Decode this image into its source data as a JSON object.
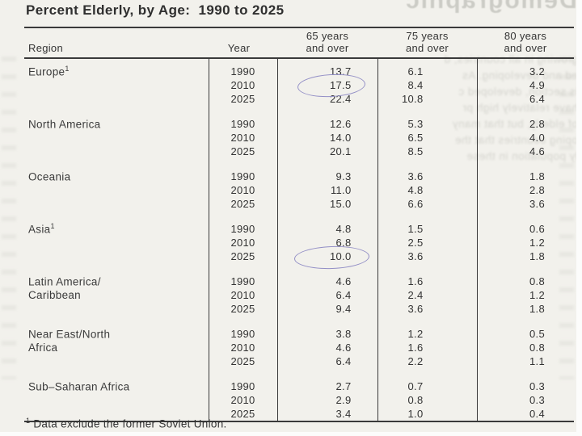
{
  "title": "Percent Elderly, by Age:  1990 to 2025",
  "columns": {
    "region": "Region",
    "year": "Year",
    "c65_line1": "65 years",
    "c65_line2": "and over",
    "c75_line1": "75 years",
    "c75_line2": "and over",
    "c80_line1": "80 years",
    "c80_line2": "and over"
  },
  "table": {
    "groups": [
      {
        "region_line1": "Europe",
        "region_sup": "1",
        "region_line2": "",
        "rows": [
          {
            "year": "1990",
            "v65": "13.7",
            "v75": "6.1",
            "v80": "3.2"
          },
          {
            "year": "2010",
            "v65": "17.5",
            "v75": "8.4",
            "v80": "4.9"
          },
          {
            "year": "2025",
            "v65": "22.4",
            "v75": "10.8",
            "v80": "6.4"
          }
        ]
      },
      {
        "region_line1": "North America",
        "region_sup": "",
        "region_line2": "",
        "rows": [
          {
            "year": "1990",
            "v65": "12.6",
            "v75": "5.3",
            "v80": "2.8"
          },
          {
            "year": "2010",
            "v65": "14.0",
            "v75": "6.5",
            "v80": "4.0"
          },
          {
            "year": "2025",
            "v65": "20.1",
            "v75": "8.5",
            "v80": "4.6"
          }
        ]
      },
      {
        "region_line1": "Oceania",
        "region_sup": "",
        "region_line2": "",
        "rows": [
          {
            "year": "1990",
            "v65": "9.3",
            "v75": "3.6",
            "v80": "1.8"
          },
          {
            "year": "2010",
            "v65": "11.0",
            "v75": "4.8",
            "v80": "2.8"
          },
          {
            "year": "2025",
            "v65": "15.0",
            "v75": "6.6",
            "v80": "3.6"
          }
        ]
      },
      {
        "region_line1": "Asia",
        "region_sup": "1",
        "region_line2": "",
        "rows": [
          {
            "year": "1990",
            "v65": "4.8",
            "v75": "1.5",
            "v80": "0.6"
          },
          {
            "year": "2010",
            "v65": "6.8",
            "v75": "2.5",
            "v80": "1.2"
          },
          {
            "year": "2025",
            "v65": "10.0",
            "v75": "3.6",
            "v80": "1.8"
          }
        ]
      },
      {
        "region_line1": "Latin America/",
        "region_sup": "",
        "region_line2": "Caribbean",
        "rows": [
          {
            "year": "1990",
            "v65": "4.6",
            "v75": "1.6",
            "v80": "0.8"
          },
          {
            "year": "2010",
            "v65": "6.4",
            "v75": "2.4",
            "v80": "1.2"
          },
          {
            "year": "2025",
            "v65": "9.4",
            "v75": "3.6",
            "v80": "1.8"
          }
        ]
      },
      {
        "region_line1": "Near East/North",
        "region_sup": "",
        "region_line2": "Africa",
        "rows": [
          {
            "year": "1990",
            "v65": "3.8",
            "v75": "1.2",
            "v80": "0.5"
          },
          {
            "year": "2010",
            "v65": "4.6",
            "v75": "1.6",
            "v80": "0.8"
          },
          {
            "year": "2025",
            "v65": "6.4",
            "v75": "2.2",
            "v80": "1.1"
          }
        ]
      },
      {
        "region_line1": "Sub–Saharan Africa",
        "region_sup": "",
        "region_line2": "",
        "rows": [
          {
            "year": "1990",
            "v65": "2.7",
            "v75": "0.7",
            "v80": "0.3"
          },
          {
            "year": "2010",
            "v65": "2.9",
            "v75": "0.8",
            "v80": "0.3"
          },
          {
            "year": "2025",
            "v65": "3.4",
            "v75": "1.0",
            "v80": "0.4"
          }
        ]
      }
    ]
  },
  "annotations": {
    "circle_1": "ellipse around Europe 2010 value 17.5 (65 years and over)",
    "circle_2": "ellipse around Asia 2025 value 10.0 (65 years and over)",
    "circle_color": "#938fc6"
  },
  "footnote": {
    "sup": "1",
    "text": " Data exclude the former Soviet Union."
  },
  "artifacts": {
    "bleedthrough_title": "Demographic",
    "fragments": {
      "l1": "growing in all countries, d",
      "l2": "ed and developing. As",
      "l3": "is section, developed c",
      "l4": "have relatively high pr",
      "l5": "of elderly, but that many",
      "l6": "oping countries that the",
      "l7": "ly population in these"
    }
  },
  "colors": {
    "background": "#f2f1ec",
    "rule": "#3a3a3a",
    "text": "#333333",
    "annotation": "#938fc6",
    "bleedthrough": "#c6c6c0"
  }
}
